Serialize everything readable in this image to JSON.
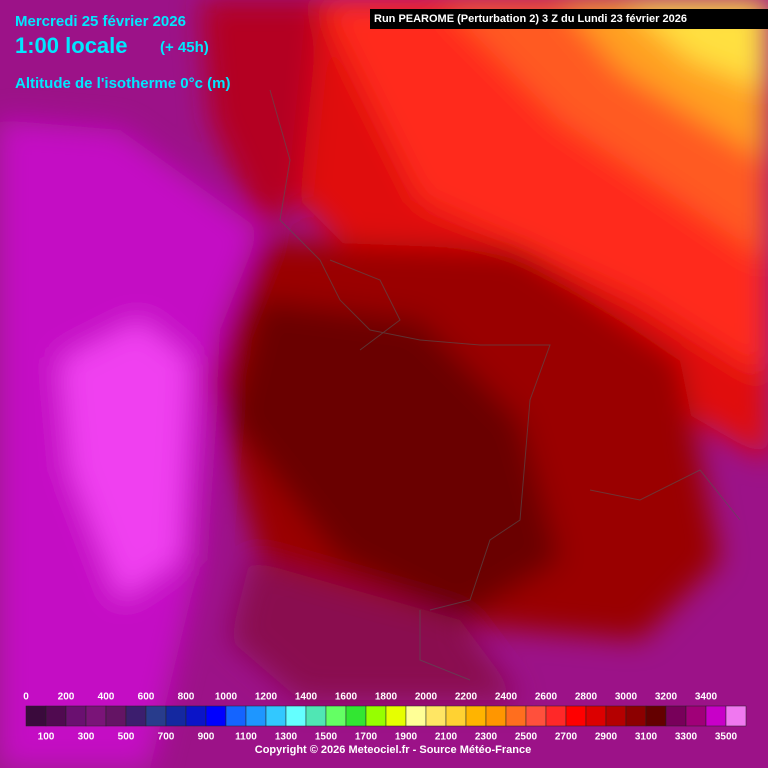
{
  "header": {
    "date": "Mercredi 25 février 2026",
    "time": "1:00 locale",
    "lead": "(+ 45h)",
    "parameter": "Altitude de l'isotherme 0°c (m)",
    "run": "Run PEAROME (Perturbation 2) 3 Z du Lundi 23 février 2026"
  },
  "legend": {
    "levels": [
      0,
      100,
      200,
      300,
      400,
      500,
      600,
      700,
      800,
      900,
      1000,
      1100,
      1200,
      1300,
      1400,
      1500,
      1600,
      1700,
      1800,
      1900,
      2000,
      2100,
      2200,
      2300,
      2400,
      2500,
      2600,
      2700,
      2800,
      2900,
      3000,
      3100,
      3200,
      3300,
      3400,
      3500
    ],
    "colors": [
      "#3a0a3c",
      "#500a50",
      "#6a1070",
      "#7a1478",
      "#641464",
      "#3c1e6e",
      "#283c8c",
      "#1428a0",
      "#0a14c8",
      "#0000ff",
      "#1464ff",
      "#1e96ff",
      "#32c8ff",
      "#64ffff",
      "#50e6b4",
      "#64ff64",
      "#32e632",
      "#96ff00",
      "#e6ff00",
      "#ffff96",
      "#ffe664",
      "#ffd232",
      "#ffb400",
      "#ff9600",
      "#ff6e1e",
      "#ff503c",
      "#ff2828",
      "#ff0000",
      "#dc0000",
      "#b40000",
      "#8c0000",
      "#640000",
      "#78005a",
      "#a00078",
      "#c800c8",
      "#f078f0"
    ]
  },
  "footer": {
    "copyright": "Copyright © 2026 Meteociel.fr - Source Météo-France"
  }
}
